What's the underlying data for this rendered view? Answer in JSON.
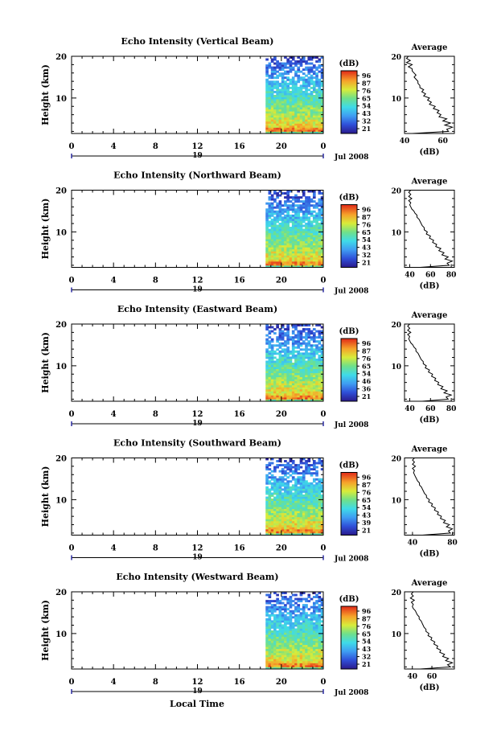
{
  "figure": {
    "bottom_xlabel": "Local Time",
    "month_label": "Jul 2008",
    "date_marker": "19"
  },
  "chart_data": [
    {
      "type": "heatmap",
      "title": "Echo Intensity (Vertical Beam)",
      "ylabel": "Height (km)",
      "xlim": [
        0,
        24
      ],
      "ylim": [
        1.5,
        20
      ],
      "xticks": [
        "0",
        "4",
        "8",
        "12",
        "16",
        "20",
        "0"
      ],
      "yticks": [
        "10",
        "20"
      ],
      "data_x_range": [
        18.5,
        24
      ],
      "colorbar": {
        "label": "(dB)",
        "ticks": [
          "96",
          "87",
          "76",
          "65",
          "54",
          "43",
          "32",
          "21"
        ]
      },
      "average_profile": {
        "title": "Average",
        "xlabel": "(dB)",
        "xlim": [
          40,
          66
        ],
        "xticks": [
          "40",
          "60"
        ],
        "yticks": [
          "10",
          "20"
        ],
        "height": [
          1.5,
          2,
          2.5,
          3,
          3.5,
          4,
          4.5,
          5,
          5.5,
          6,
          6.5,
          7,
          7.5,
          8,
          8.5,
          9,
          9.5,
          10,
          10.5,
          11,
          11.5,
          12,
          12.5,
          13,
          13.5,
          14,
          14.5,
          15,
          15.5,
          16,
          16.5,
          17,
          17.5,
          18,
          18.5,
          19,
          19.5,
          20
        ],
        "value": [
          44,
          63,
          62,
          65,
          61,
          64,
          60,
          62,
          58,
          59,
          57,
          58,
          55,
          56,
          53,
          54,
          52,
          53,
          50,
          51,
          49,
          50,
          48,
          48,
          47,
          47,
          46,
          45,
          46,
          45,
          44,
          44,
          42,
          44,
          41,
          43,
          41,
          42
        ]
      }
    },
    {
      "type": "heatmap",
      "title": "Echo Intensity (Northward Beam)",
      "ylabel": "Height (km)",
      "xlim": [
        0,
        24
      ],
      "ylim": [
        1.5,
        20
      ],
      "xticks": [
        "0",
        "4",
        "8",
        "12",
        "16",
        "20",
        "0"
      ],
      "yticks": [
        "10",
        "20"
      ],
      "data_x_range": [
        18.5,
        24
      ],
      "colorbar": {
        "label": "(dB)",
        "ticks": [
          "96",
          "87",
          "76",
          "65",
          "54",
          "43",
          "32",
          "21"
        ]
      },
      "average_profile": {
        "title": "Average",
        "xlabel": "(dB)",
        "xlim": [
          35,
          83
        ],
        "xticks": [
          "40",
          "60",
          "80"
        ],
        "yticks": [
          "10",
          "20"
        ],
        "height": [
          1.5,
          2,
          2.5,
          3,
          3.5,
          4,
          4.5,
          5,
          5.5,
          6,
          6.5,
          7,
          7.5,
          8,
          8.5,
          9,
          9.5,
          10,
          10.5,
          11,
          11.5,
          12,
          12.5,
          13,
          13.5,
          14,
          14.5,
          15,
          15.5,
          16,
          16.5,
          17,
          17.5,
          18,
          18.5,
          19,
          19.5,
          20
        ],
        "value": [
          50,
          78,
          76,
          81,
          74,
          77,
          71,
          73,
          68,
          70,
          65,
          66,
          62,
          63,
          59,
          60,
          56,
          57,
          54,
          54,
          52,
          51,
          50,
          49,
          47,
          47,
          45,
          44,
          42,
          41,
          40,
          41,
          39,
          42,
          39,
          41,
          39,
          41
        ]
      }
    },
    {
      "type": "heatmap",
      "title": "Echo Intensity (Eastward Beam)",
      "ylabel": "Height (km)",
      "xlim": [
        0,
        24
      ],
      "ylim": [
        1.5,
        20
      ],
      "xticks": [
        "0",
        "4",
        "8",
        "12",
        "16",
        "20",
        "0"
      ],
      "yticks": [
        "10",
        "20"
      ],
      "data_x_range": [
        18.5,
        24
      ],
      "colorbar": {
        "label": "(dB)",
        "ticks": [
          "96",
          "87",
          "76",
          "65",
          "54",
          "46",
          "36",
          "21"
        ]
      },
      "average_profile": {
        "title": "Average",
        "xlabel": "(dB)",
        "xlim": [
          35,
          83
        ],
        "xticks": [
          "40",
          "60",
          "80"
        ],
        "yticks": [
          "10",
          "20"
        ],
        "height": [
          1.5,
          2,
          2.5,
          3,
          3.5,
          4,
          4.5,
          5,
          5.5,
          6,
          6.5,
          7,
          7.5,
          8,
          8.5,
          9,
          9.5,
          10,
          10.5,
          11,
          11.5,
          12,
          12.5,
          13,
          13.5,
          14,
          14.5,
          15,
          15.5,
          16,
          16.5,
          17,
          17.5,
          18,
          18.5,
          19,
          19.5,
          20
        ],
        "value": [
          52,
          77,
          75,
          80,
          73,
          76,
          70,
          72,
          67,
          68,
          64,
          65,
          61,
          62,
          58,
          59,
          55,
          56,
          53,
          53,
          51,
          50,
          49,
          48,
          46,
          46,
          44,
          43,
          41,
          40,
          39,
          40,
          38,
          41,
          38,
          40,
          38,
          40
        ]
      }
    },
    {
      "type": "heatmap",
      "title": "Echo Intensity (Southward Beam)",
      "ylabel": "Height (km)",
      "xlim": [
        0,
        24
      ],
      "ylim": [
        1.5,
        20
      ],
      "xticks": [
        "0",
        "4",
        "8",
        "12",
        "16",
        "20",
        "0"
      ],
      "yticks": [
        "10",
        "20"
      ],
      "data_x_range": [
        18.5,
        24
      ],
      "colorbar": {
        "label": "(dB)",
        "ticks": [
          "96",
          "87",
          "76",
          "65",
          "54",
          "43",
          "39",
          "21"
        ]
      },
      "average_profile": {
        "title": "Average",
        "xlabel": "(dB)",
        "xlim": [
          32,
          82
        ],
        "xticks": [
          "40",
          "80"
        ],
        "yticks": [
          "10",
          "20"
        ],
        "height": [
          1.5,
          2,
          2.5,
          3,
          3.5,
          4,
          4.5,
          5,
          5.5,
          6,
          6.5,
          7,
          7.5,
          8,
          8.5,
          9,
          9.5,
          10,
          10.5,
          11,
          11.5,
          12,
          12.5,
          13,
          13.5,
          14,
          14.5,
          15,
          15.5,
          16,
          16.5,
          17,
          17.5,
          18,
          18.5,
          19,
          19.5,
          20
        ],
        "value": [
          50,
          78,
          76,
          80,
          74,
          77,
          71,
          73,
          68,
          69,
          65,
          66,
          62,
          63,
          59,
          60,
          56,
          57,
          54,
          54,
          52,
          51,
          50,
          49,
          47,
          47,
          45,
          44,
          43,
          42,
          41,
          42,
          40,
          43,
          40,
          42,
          40,
          42
        ]
      }
    },
    {
      "type": "heatmap",
      "title": "Echo Intensity (Westward Beam)",
      "ylabel": "Height (km)",
      "xlim": [
        0,
        24
      ],
      "ylim": [
        1.5,
        20
      ],
      "xticks": [
        "0",
        "4",
        "8",
        "12",
        "16",
        "20",
        "0"
      ],
      "yticks": [
        "10",
        "20"
      ],
      "data_x_range": [
        18.5,
        24
      ],
      "colorbar": {
        "label": "(dB)",
        "ticks": [
          "96",
          "87",
          "76",
          "65",
          "54",
          "43",
          "32",
          "21"
        ]
      },
      "average_profile": {
        "title": "Average",
        "xlabel": "(dB)",
        "xlim": [
          32,
          83
        ],
        "xticks": [
          "40",
          "60"
        ],
        "yticks": [
          "10",
          "20"
        ],
        "height": [
          1.5,
          2,
          2.5,
          3,
          3.5,
          4,
          4.5,
          5,
          5.5,
          6,
          6.5,
          7,
          7.5,
          8,
          8.5,
          9,
          9.5,
          10,
          10.5,
          11,
          11.5,
          12,
          12.5,
          13,
          13.5,
          14,
          14.5,
          15,
          15.5,
          16,
          16.5,
          17,
          17.5,
          18,
          18.5,
          19,
          19.5,
          20
        ],
        "value": [
          48,
          79,
          76,
          81,
          74,
          77,
          71,
          73,
          68,
          69,
          65,
          66,
          62,
          63,
          59,
          60,
          56,
          57,
          54,
          54,
          52,
          51,
          50,
          49,
          47,
          47,
          45,
          44,
          43,
          41,
          40,
          41,
          39,
          42,
          38,
          41,
          39,
          41
        ]
      }
    }
  ]
}
